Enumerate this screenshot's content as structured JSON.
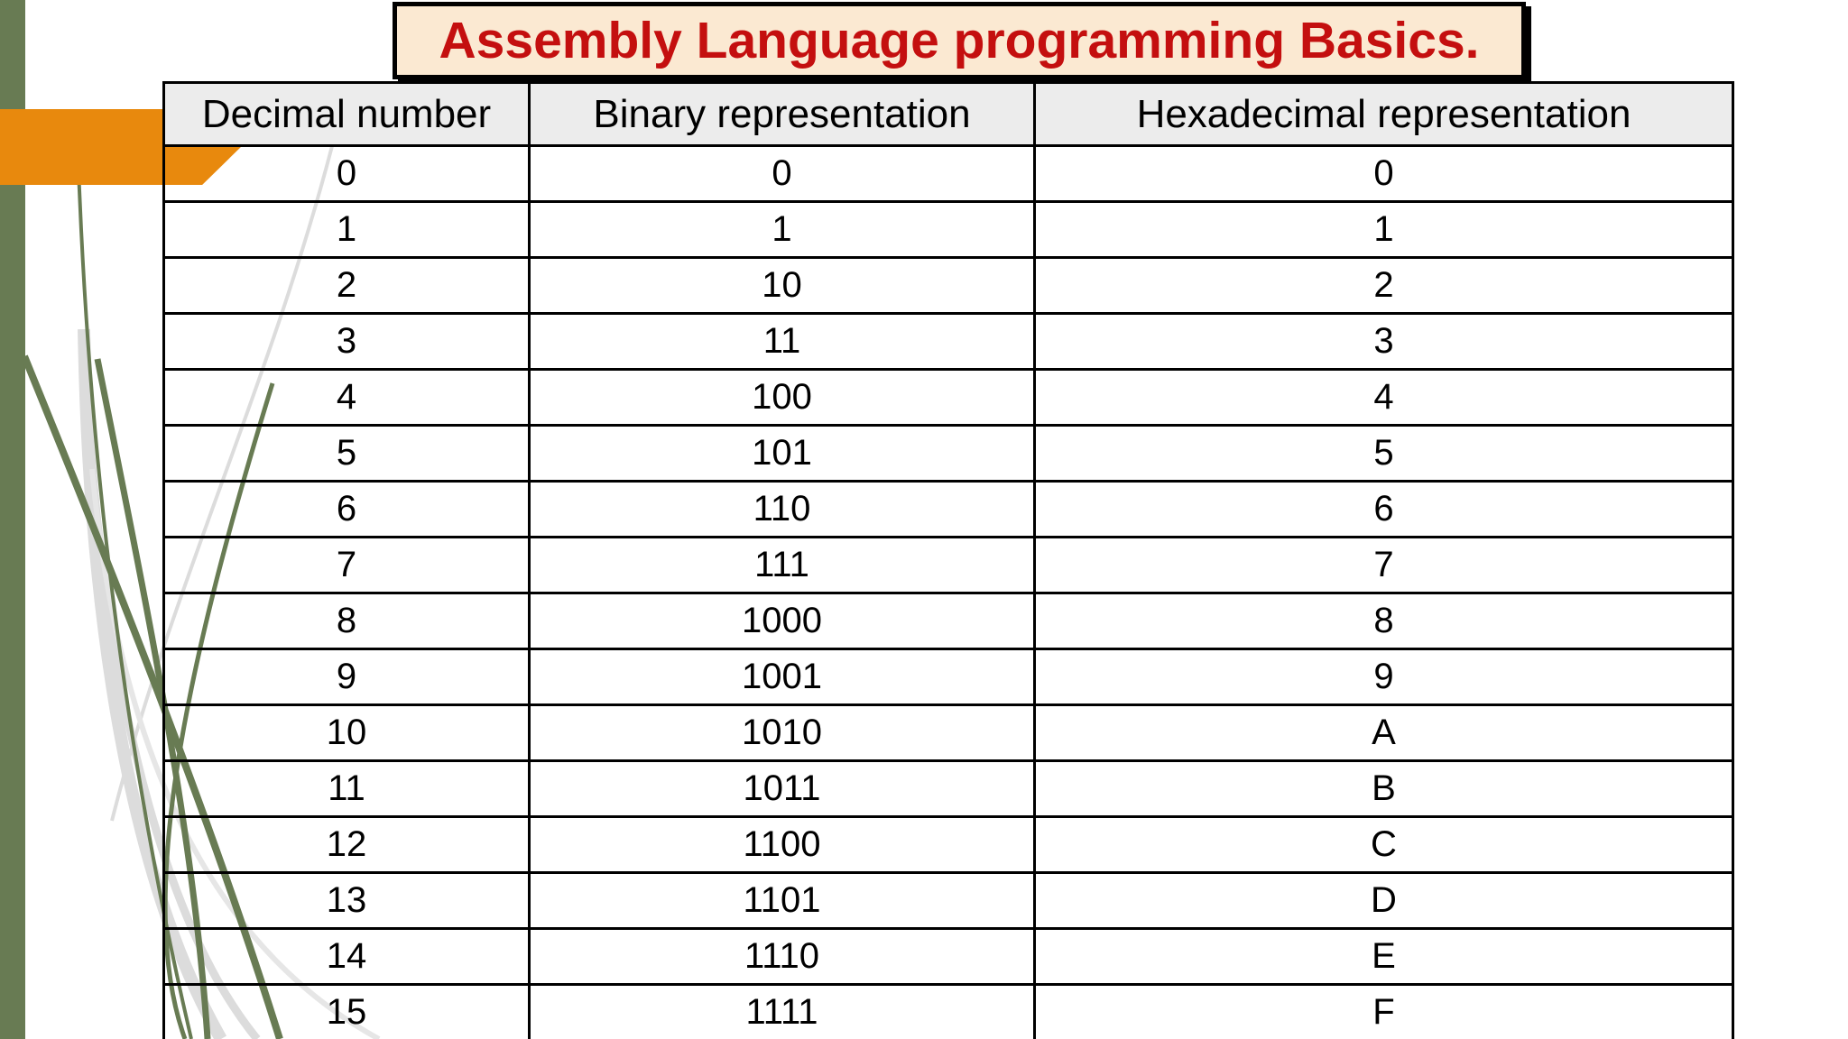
{
  "title": {
    "text": "Assembly Language programming Basics."
  },
  "table": {
    "headers": [
      "Decimal number",
      "Binary representation",
      "Hexadecimal representation"
    ],
    "rows": [
      [
        "0",
        "0",
        "0"
      ],
      [
        "1",
        "1",
        "1"
      ],
      [
        "2",
        "10",
        "2"
      ],
      [
        "3",
        "11",
        "3"
      ],
      [
        "4",
        "100",
        "4"
      ],
      [
        "5",
        "101",
        "5"
      ],
      [
        "6",
        "110",
        "6"
      ],
      [
        "7",
        "111",
        "7"
      ],
      [
        "8",
        "1000",
        "8"
      ],
      [
        "9",
        "1001",
        "9"
      ],
      [
        "10",
        "1010",
        "A"
      ],
      [
        "11",
        "1011",
        "B"
      ],
      [
        "12",
        "1100",
        "C"
      ],
      [
        "13",
        "1101",
        "D"
      ],
      [
        "14",
        "1110",
        "E"
      ],
      [
        "15",
        "1111",
        "F"
      ]
    ]
  },
  "colors": {
    "accent_orange": "#e8890d",
    "accent_green": "#687b53",
    "title_red": "#c40f0f",
    "title_bg": "#fbe9d2",
    "header_bg": "#ececec",
    "border_black": "#000000",
    "grass_gray": "#dcdcdc"
  }
}
